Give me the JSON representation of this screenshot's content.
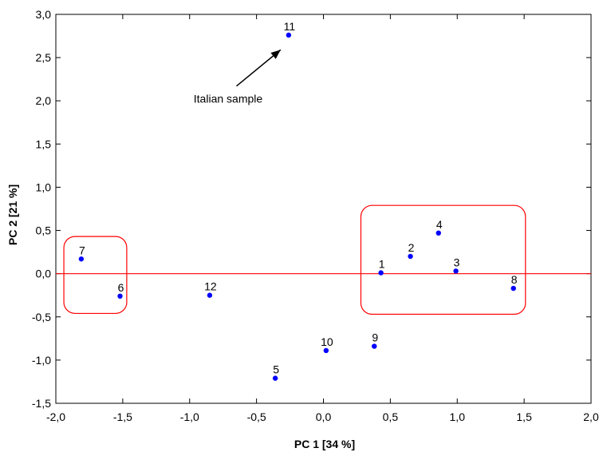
{
  "chart_data": {
    "type": "scatter",
    "title": "",
    "xlabel": "PC 1 [34 %]",
    "ylabel": "PC 2 [21 %]",
    "xlim": [
      -2.0,
      2.0
    ],
    "ylim": [
      -1.5,
      3.0
    ],
    "xticks": [
      -2.0,
      -1.5,
      -1.0,
      -0.5,
      0.0,
      0.5,
      1.0,
      1.5,
      2.0
    ],
    "yticks": [
      -1.5,
      -1.0,
      -0.5,
      0.0,
      0.5,
      1.0,
      1.5,
      2.0,
      2.5,
      3.0
    ],
    "xtick_labels": [
      "-2,0",
      "-1,5",
      "-1,0",
      "-0,5",
      "0,0",
      "0,5",
      "1,0",
      "1,5",
      "2,0"
    ],
    "ytick_labels": [
      "-1,5",
      "-1,0",
      "-0,5",
      "0,0",
      "0,5",
      "1,0",
      "1,5",
      "2,0",
      "2,5",
      "3,0"
    ],
    "grid": false,
    "point_color": "#0000ff",
    "highlight_color": "#ff0000",
    "points": [
      {
        "label": "1",
        "x": 0.43,
        "y": 0.01
      },
      {
        "label": "2",
        "x": 0.65,
        "y": 0.2
      },
      {
        "label": "3",
        "x": 0.99,
        "y": 0.03
      },
      {
        "label": "4",
        "x": 0.86,
        "y": 0.47
      },
      {
        "label": "5",
        "x": -0.36,
        "y": -1.21
      },
      {
        "label": "6",
        "x": -1.52,
        "y": -0.26
      },
      {
        "label": "7",
        "x": -1.81,
        "y": 0.17
      },
      {
        "label": "8",
        "x": 1.42,
        "y": -0.17
      },
      {
        "label": "9",
        "x": 0.38,
        "y": -0.84
      },
      {
        "label": "10",
        "x": 0.02,
        "y": -0.89
      },
      {
        "label": "11",
        "x": -0.26,
        "y": 2.76
      },
      {
        "label": "12",
        "x": -0.85,
        "y": -0.25
      }
    ],
    "reference_line_y": 0.0,
    "group_boxes": [
      {
        "x0": -1.94,
        "x1": -1.47,
        "y0": -0.46,
        "y1": 0.43
      },
      {
        "x0": 0.28,
        "x1": 1.51,
        "y0": -0.47,
        "y1": 0.79
      }
    ],
    "annotation": {
      "text": "Italian sample",
      "arrow_from": [
        -0.65,
        2.17
      ],
      "arrow_to": [
        -0.32,
        2.59
      ],
      "text_at": [
        -0.97,
        1.98
      ]
    }
  }
}
